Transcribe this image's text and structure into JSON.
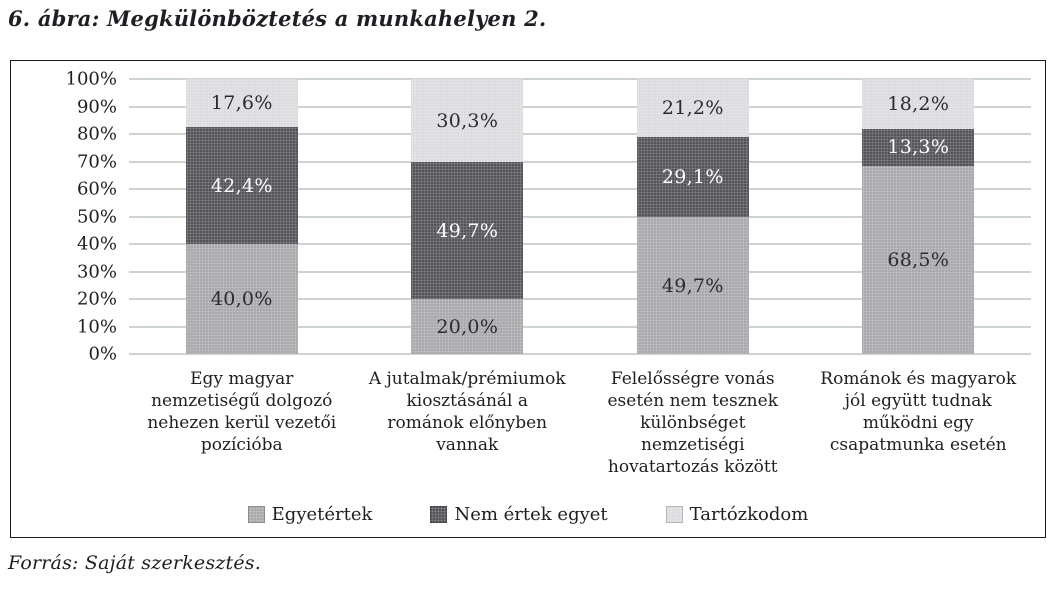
{
  "figure": {
    "title": "6. ábra: Megkülönböztetés a munkahelyen 2.",
    "source": "Forrás: Saját szerkesztés."
  },
  "chart_data": {
    "type": "bar",
    "variant": "stacked-100-percent",
    "orientation": "vertical",
    "grid": true,
    "legend_position": "bottom",
    "ylim": [
      0,
      100
    ],
    "yticks": [
      "100%",
      "90%",
      "80%",
      "70%",
      "60%",
      "50%",
      "40%",
      "30%",
      "20%",
      "10%",
      "0%"
    ],
    "categories": [
      "Egy magyar nemzetiségű dolgozó nehezen kerül vezetői pozícióba",
      "A jutalmak/prémiumok kiosztásánál a románok előnyben vannak",
      "Felelősségre vonás esetén nem tesznek különbséget nemzetiségi hovatartozás között",
      "Románok és magyarok jól együtt tudnak működni egy csapatmunka esetén"
    ],
    "series": [
      {
        "name": "Egyetértek",
        "color": "#a9a9ad",
        "label_color": "#2b2b30",
        "values": [
          40.0,
          20.0,
          49.7,
          68.5
        ],
        "labels": [
          "40,0%",
          "20,0%",
          "49,7%",
          "68,5%"
        ]
      },
      {
        "name": "Nem értek egyet",
        "color": "#545459",
        "label_color": "#ffffff",
        "values": [
          42.4,
          49.7,
          29.1,
          13.3
        ],
        "labels": [
          "42,4%",
          "49,7%",
          "29,1%",
          "13,3%"
        ]
      },
      {
        "name": "Tartózkodom",
        "color": "#dcdce0",
        "label_color": "#2b2b30",
        "values": [
          17.6,
          30.3,
          21.2,
          18.2
        ],
        "labels": [
          "17,6%",
          "30,3%",
          "21,2%",
          "18,2%"
        ]
      }
    ],
    "colors": {
      "gridline": "#9ba79c",
      "frame_border": "#1c1c1c"
    }
  }
}
